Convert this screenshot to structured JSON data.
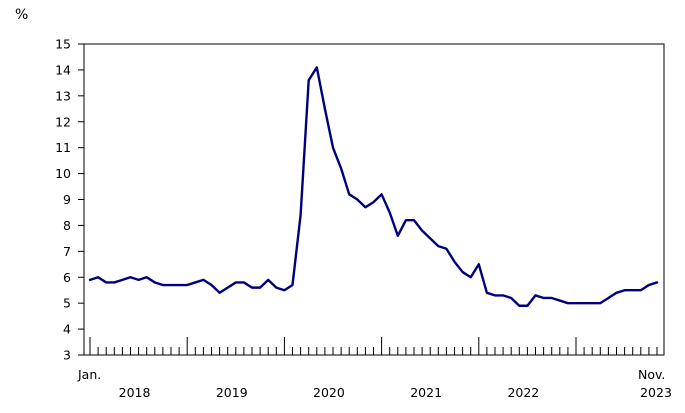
{
  "chart_data": {
    "type": "line",
    "title": "",
    "xlabel": "",
    "ylabel": "",
    "unit_label": "%",
    "ylim": [
      3,
      15
    ],
    "yticks": [
      "3",
      "4",
      "5",
      "6",
      "7",
      "8",
      "9",
      "10",
      "11",
      "12",
      "13",
      "14",
      "15"
    ],
    "x_start_label": "Jan.",
    "x_end_label": "Nov.",
    "year_labels": [
      "2018",
      "2019",
      "2020",
      "2021",
      "2022",
      "2023"
    ],
    "grid": false,
    "line_color": "#00007f",
    "series": [
      {
        "values": [
          5.9,
          6.0,
          5.8,
          5.8,
          5.9,
          6.0,
          5.9,
          6.0,
          5.8,
          5.7,
          5.7,
          5.7,
          5.7,
          5.8,
          5.9,
          5.7,
          5.4,
          5.6,
          5.8,
          5.8,
          5.6,
          5.6,
          5.9,
          5.6,
          5.5,
          5.7,
          8.4,
          13.6,
          14.1,
          12.5,
          11.0,
          10.2,
          9.2,
          9.0,
          8.7,
          8.9,
          9.2,
          8.5,
          7.6,
          8.2,
          8.2,
          7.8,
          7.5,
          7.2,
          7.1,
          6.6,
          6.2,
          6.0,
          6.5,
          5.4,
          5.3,
          5.3,
          5.2,
          4.9,
          4.9,
          5.3,
          5.2,
          5.2,
          5.1,
          5.0,
          5.0,
          5.0,
          5.0,
          5.0,
          5.2,
          5.4,
          5.5,
          5.5,
          5.5,
          5.7,
          5.8
        ]
      }
    ]
  }
}
